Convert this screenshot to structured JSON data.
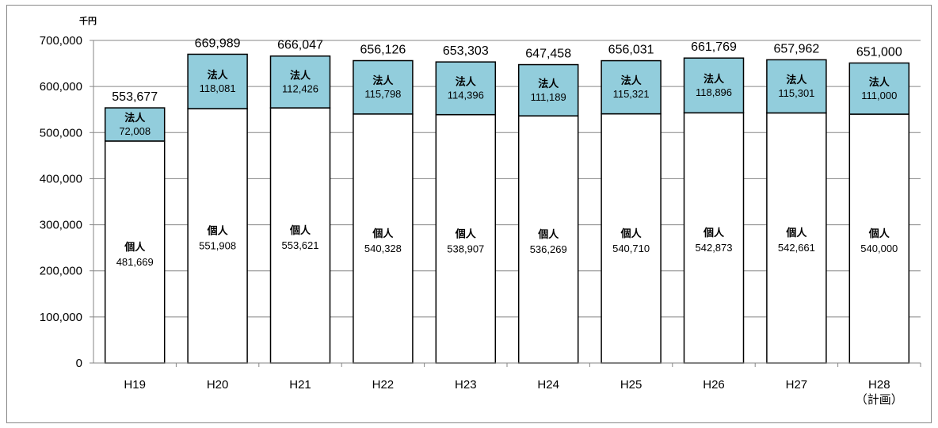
{
  "chart_data": {
    "type": "bar",
    "stacked": true,
    "unit": "千円",
    "ylim": [
      0,
      700000
    ],
    "yticks": [
      "0",
      "100,000",
      "200,000",
      "300,000",
      "400,000",
      "500,000",
      "600,000",
      "700,000"
    ],
    "ytick_values": [
      0,
      100000,
      200000,
      300000,
      400000,
      500000,
      600000,
      700000
    ],
    "grid": true,
    "categories": [
      "H19",
      "H20",
      "H21",
      "H22",
      "H23",
      "H24",
      "H25",
      "H26",
      "H27",
      "H28"
    ],
    "category_sublabels": [
      "",
      "",
      "",
      "",
      "",
      "",
      "",
      "",
      "",
      "（計画）"
    ],
    "series": [
      {
        "name": "個人",
        "color": "#ffffff",
        "values": [
          481669,
          551908,
          553621,
          540328,
          538907,
          536269,
          540710,
          542873,
          542661,
          540000
        ],
        "labels": [
          "481,669",
          "551,908",
          "553,621",
          "540,328",
          "538,907",
          "536,269",
          "540,710",
          "542,873",
          "542,661",
          "540,000"
        ]
      },
      {
        "name": "法人",
        "color": "#92cddc",
        "values": [
          72008,
          118081,
          112426,
          115798,
          114396,
          111189,
          115321,
          118896,
          115301,
          111000
        ],
        "labels": [
          "72,008",
          "118,081",
          "112,426",
          "115,798",
          "114,396",
          "111,189",
          "115,321",
          "118,896",
          "115,301",
          "111,000"
        ]
      }
    ],
    "totals": [
      553677,
      669989,
      666047,
      656126,
      653303,
      647458,
      656031,
      661769,
      657962,
      651000
    ],
    "total_labels": [
      "553,677",
      "669,989",
      "666,047",
      "656,126",
      "653,303",
      "647,458",
      "656,031",
      "661,769",
      "657,962",
      "651,000"
    ]
  }
}
